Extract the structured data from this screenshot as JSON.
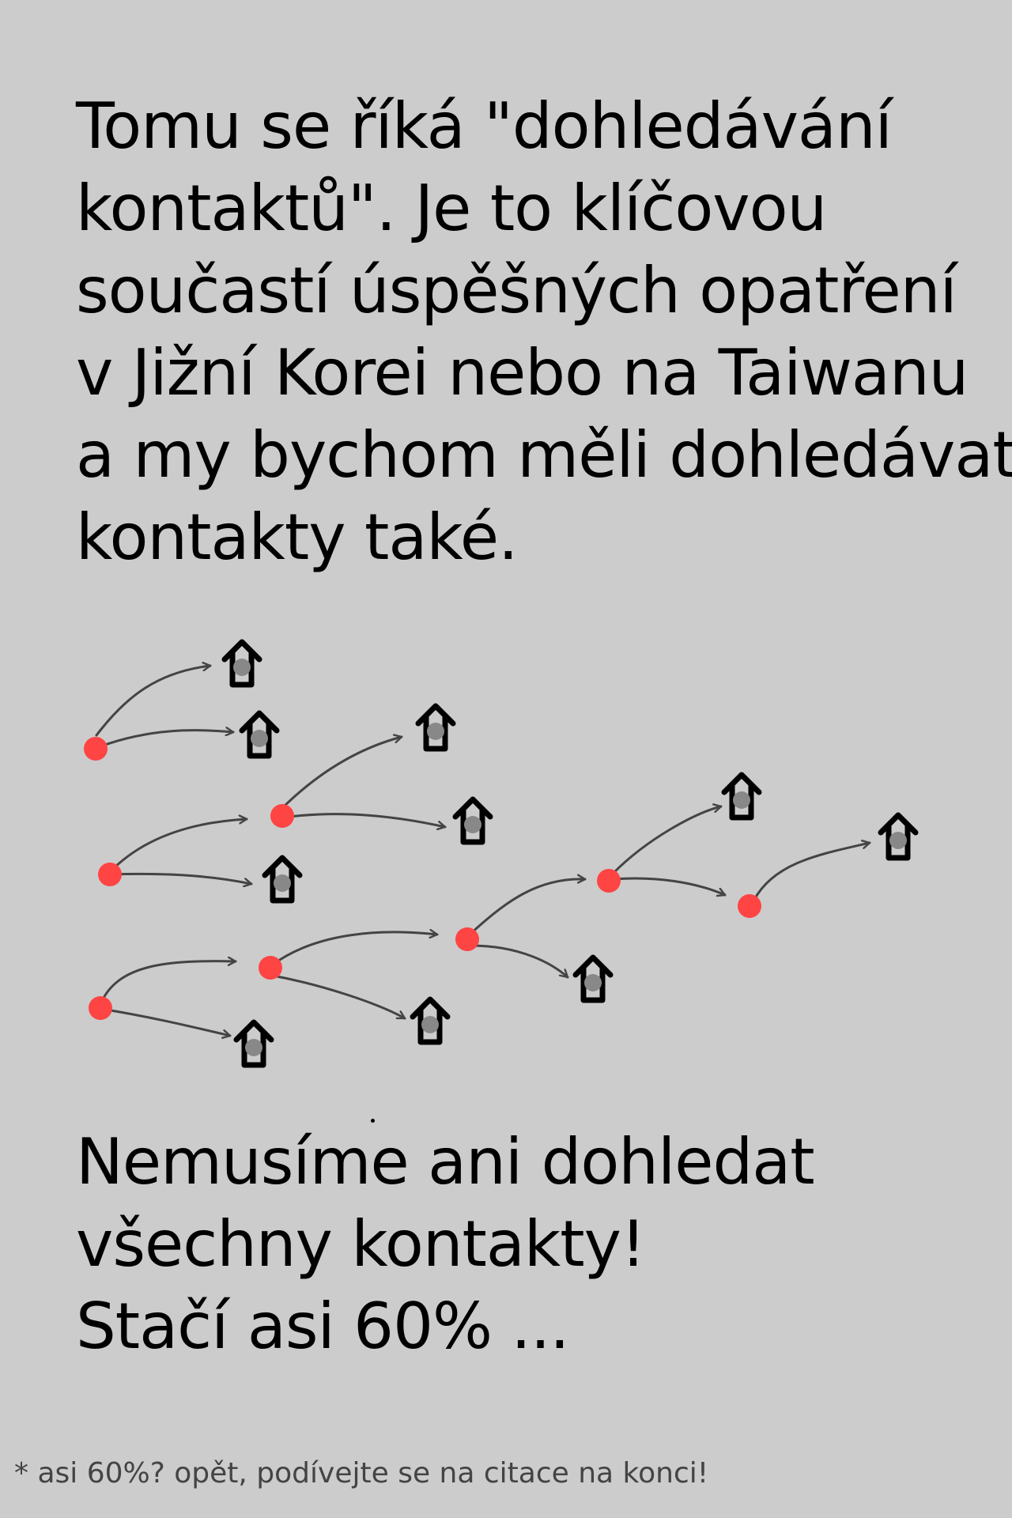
{
  "intro": {
    "lines": [
      "Tomu se říká \"dohledávání",
      "kontaktů\". Je to klíčovou",
      "součastí úspěšných opatření",
      "v Jižní Korei nebo na Taiwanu",
      "a my bychom měli dohledávat",
      "kontakty také."
    ]
  },
  "conclusion": {
    "lines": [
      "Nemusíme ani dohledat",
      "všechny kontakty!",
      "Stačí asi 60% ..."
    ]
  },
  "footnote": "* asi 60%? opět, podívejte se na citace na konci!",
  "diagram": {
    "colors": {
      "person": "#ff4444",
      "arrow": "#444444",
      "house_outline": "#000000",
      "house_fill": "#cccccc",
      "occupant": "#888888"
    },
    "icons": [
      "person-dot-icon",
      "house-icon"
    ]
  }
}
